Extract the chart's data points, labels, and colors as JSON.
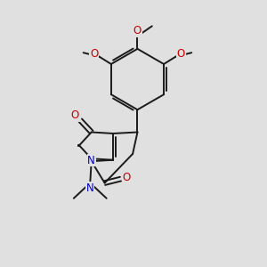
{
  "bg_color": "#e0e0e0",
  "bond_color": "#1a1a1a",
  "bond_width": 1.4,
  "atom_colors": {
    "O": "#cc0000",
    "N": "#0000cc"
  },
  "font_size": 8.5
}
